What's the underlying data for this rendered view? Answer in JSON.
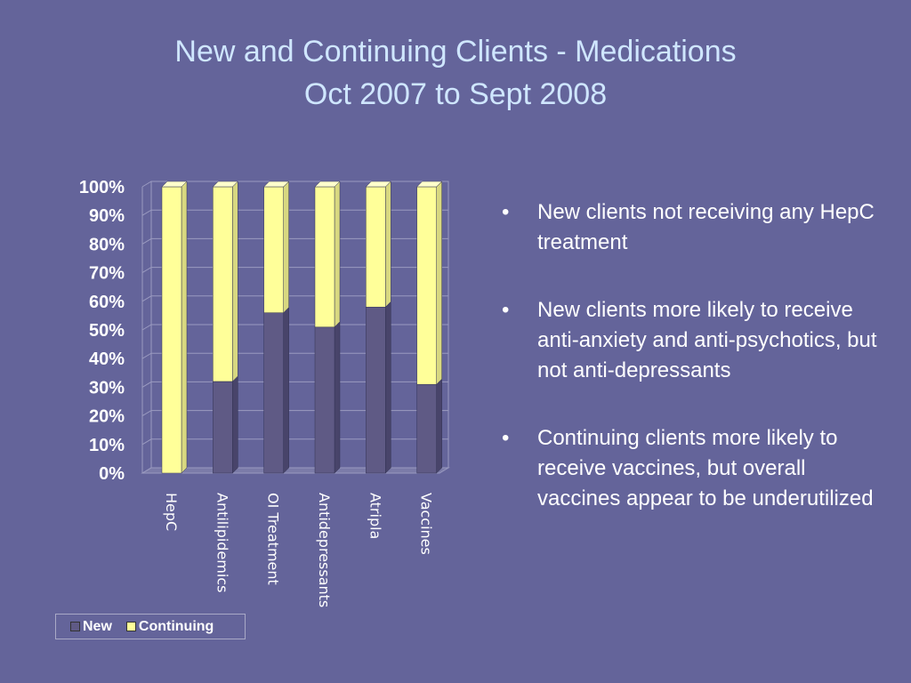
{
  "slide": {
    "title_line1": "New and Continuing Clients - Medications",
    "title_line2": "Oct 2007 to Sept 2008"
  },
  "bullets": [
    "New clients not receiving any HepC treatment",
    "New clients more likely to receive anti-anxiety and anti-psychotics, but not anti-depressants",
    "Continuing clients more likely to receive vaccines, but overall vaccines appear to be underutilized"
  ],
  "colors": {
    "background": "#64649a",
    "new": "#5f5a85",
    "continuing": "#ffff99",
    "title": "#cfe6ff"
  },
  "chart_data": {
    "type": "bar",
    "stacked": true,
    "percent": true,
    "categories": [
      "HepC",
      "Antilipidemics",
      "OI Treatment",
      "Antidepressants",
      "Atripla",
      "Vaccines"
    ],
    "series": [
      {
        "name": "New",
        "values": [
          0,
          32,
          56,
          51,
          58,
          31
        ]
      },
      {
        "name": "Continuing",
        "values": [
          100,
          68,
          44,
          49,
          42,
          69
        ]
      }
    ],
    "ylim": [
      0,
      100
    ],
    "yticks": [
      "0%",
      "10%",
      "20%",
      "30%",
      "40%",
      "50%",
      "60%",
      "70%",
      "80%",
      "90%",
      "100%"
    ],
    "grid": true,
    "legend_position": "bottom-left"
  }
}
